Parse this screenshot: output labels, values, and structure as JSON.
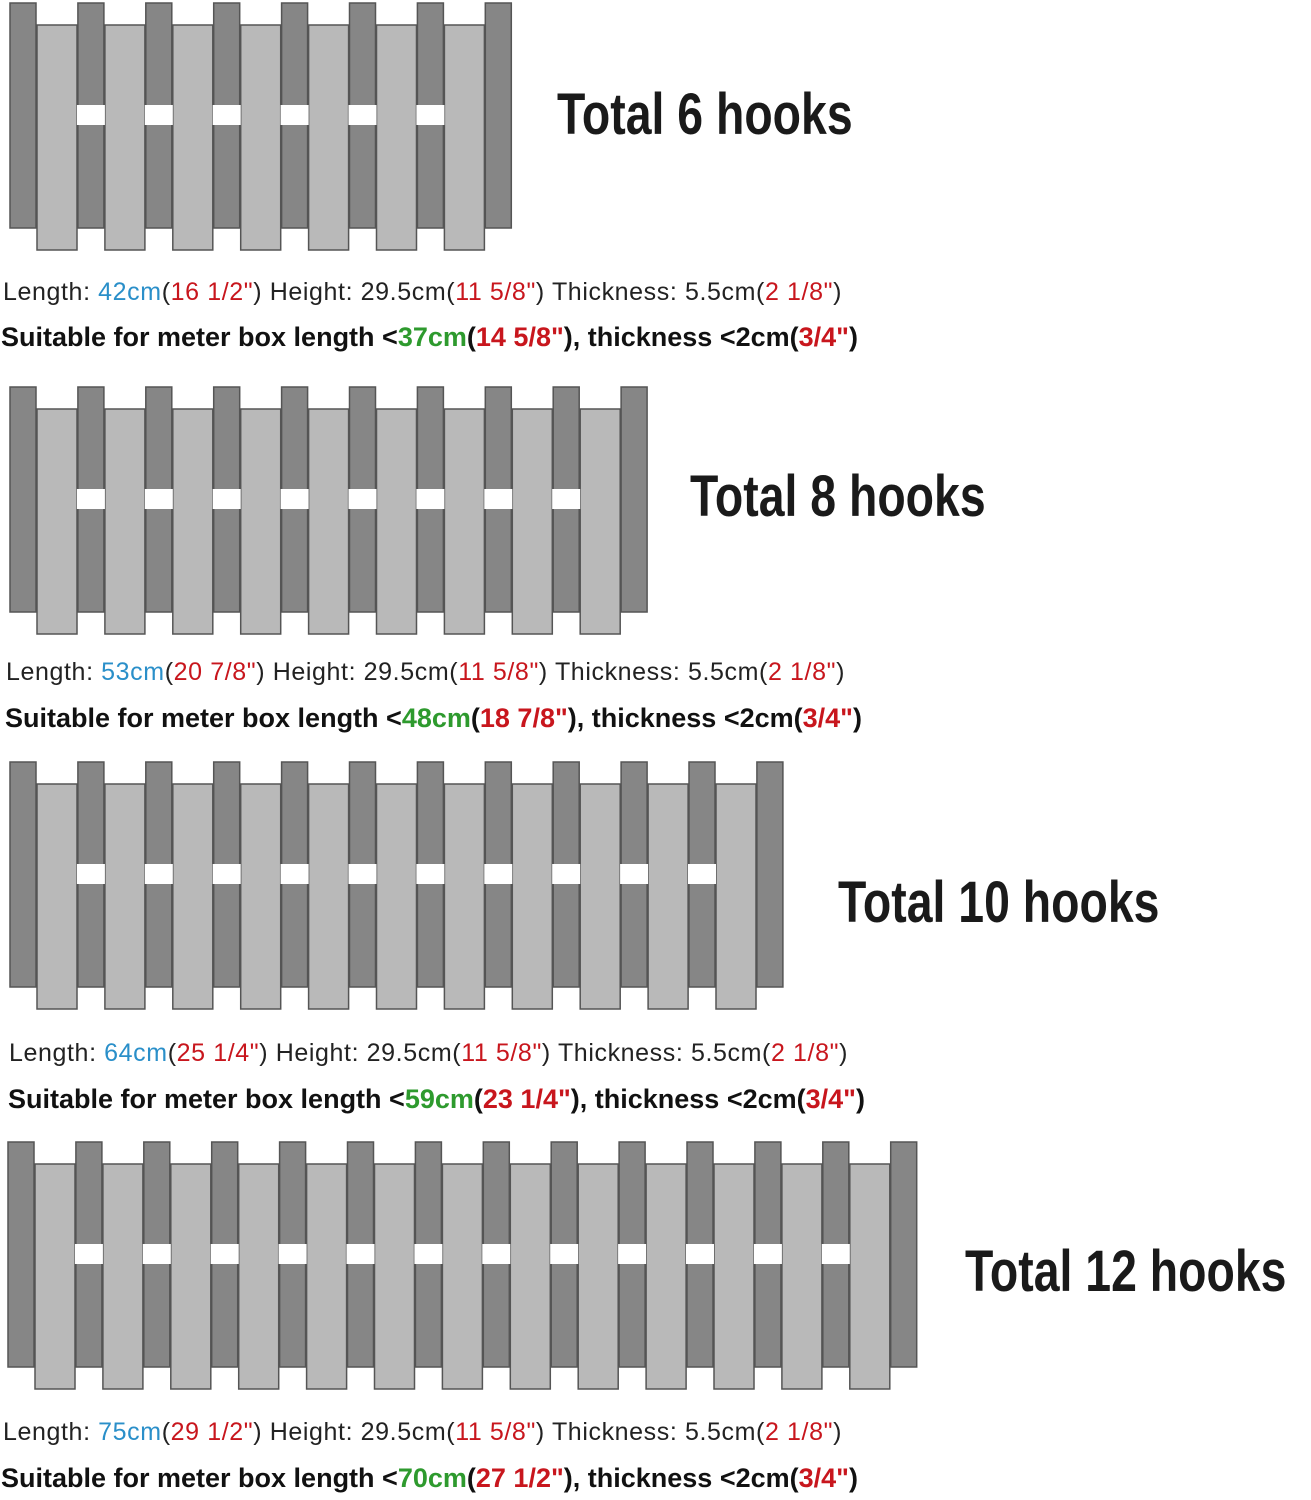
{
  "sections": [
    {
      "title": "Total 6 hooks",
      "specs": [
        {
          "text": "Length: ",
          "color": "#222222"
        },
        {
          "text": "42cm",
          "color": "#2a8fc9"
        },
        {
          "text": "(",
          "color": "#222222"
        },
        {
          "text": "16 1/2\"",
          "color": "#c8161d"
        },
        {
          "text": ") Height: 29.5cm(",
          "color": "#222222"
        },
        {
          "text": "11 5/8\"",
          "color": "#c8161d"
        },
        {
          "text": ") Thickness: 5.5cm(",
          "color": "#222222"
        },
        {
          "text": "2 1/8\"",
          "color": "#c8161d"
        },
        {
          "text": ")",
          "color": "#222222"
        }
      ],
      "fit": [
        {
          "text": "Suitable for meter box length <",
          "color": "#111111"
        },
        {
          "text": "37cm",
          "color": "#2e9a2e"
        },
        {
          "text": "(",
          "color": "#111111"
        },
        {
          "text": "14 5/8\"",
          "color": "#c8161d"
        },
        {
          "text": "), thickness <2cm(",
          "color": "#111111"
        },
        {
          "text": "3/4\"",
          "color": "#c8161d"
        },
        {
          "text": ")",
          "color": "#111111"
        }
      ]
    },
    {
      "title": "Total 8 hooks",
      "specs": [
        {
          "text": "Length: ",
          "color": "#222222"
        },
        {
          "text": "53cm",
          "color": "#2a8fc9"
        },
        {
          "text": "(",
          "color": "#222222"
        },
        {
          "text": "20 7/8\"",
          "color": "#c8161d"
        },
        {
          "text": ") Height: 29.5cm(",
          "color": "#222222"
        },
        {
          "text": "11 5/8\"",
          "color": "#c8161d"
        },
        {
          "text": ") Thickness: 5.5cm(",
          "color": "#222222"
        },
        {
          "text": "2 1/8\"",
          "color": "#c8161d"
        },
        {
          "text": ")",
          "color": "#222222"
        }
      ],
      "fit": [
        {
          "text": "Suitable for meter box length <",
          "color": "#111111"
        },
        {
          "text": "48cm",
          "color": "#2e9a2e"
        },
        {
          "text": "(",
          "color": "#111111"
        },
        {
          "text": "18 7/8\"",
          "color": "#c8161d"
        },
        {
          "text": "), thickness <2cm(",
          "color": "#111111"
        },
        {
          "text": "3/4\"",
          "color": "#c8161d"
        },
        {
          "text": ")",
          "color": "#111111"
        }
      ]
    },
    {
      "title": "Total 10 hooks",
      "specs": [
        {
          "text": "Length: ",
          "color": "#222222"
        },
        {
          "text": "64cm",
          "color": "#2a8fc9"
        },
        {
          "text": "(",
          "color": "#222222"
        },
        {
          "text": "25 1/4\"",
          "color": "#c8161d"
        },
        {
          "text": ") Height: 29.5cm(",
          "color": "#222222"
        },
        {
          "text": "11 5/8\"",
          "color": "#c8161d"
        },
        {
          "text": ") Thickness: 5.5cm(",
          "color": "#222222"
        },
        {
          "text": "2 1/8\"",
          "color": "#c8161d"
        },
        {
          "text": ")",
          "color": "#222222"
        }
      ],
      "fit": [
        {
          "text": "Suitable for meter box length <",
          "color": "#111111"
        },
        {
          "text": "59cm",
          "color": "#2e9a2e"
        },
        {
          "text": "(",
          "color": "#111111"
        },
        {
          "text": "23 1/4\"",
          "color": "#c8161d"
        },
        {
          "text": "), thickness <2cm(",
          "color": "#111111"
        },
        {
          "text": "3/4\"",
          "color": "#c8161d"
        },
        {
          "text": ")",
          "color": "#111111"
        }
      ]
    },
    {
      "title": "Total 12 hooks",
      "specs": [
        {
          "text": "Length: ",
          "color": "#222222"
        },
        {
          "text": "75cm",
          "color": "#2a8fc9"
        },
        {
          "text": "(",
          "color": "#222222"
        },
        {
          "text": "29 1/2\"",
          "color": "#c8161d"
        },
        {
          "text": ") Height: 29.5cm(",
          "color": "#222222"
        },
        {
          "text": "11 5/8\"",
          "color": "#c8161d"
        },
        {
          "text": ") Thickness: 5.5cm(",
          "color": "#222222"
        },
        {
          "text": "2 1/8\"",
          "color": "#c8161d"
        },
        {
          "text": ")",
          "color": "#222222"
        }
      ],
      "fit": [
        {
          "text": "Suitable for meter box length <",
          "color": "#111111"
        },
        {
          "text": "70cm",
          "color": "#2e9a2e"
        },
        {
          "text": "(",
          "color": "#111111"
        },
        {
          "text": "27 1/2\"",
          "color": "#c8161d"
        },
        {
          "text": "), thickness <2cm(",
          "color": "#111111"
        },
        {
          "text": "3/4\"",
          "color": "#c8161d"
        },
        {
          "text": ")",
          "color": "#111111"
        }
      ]
    }
  ]
}
